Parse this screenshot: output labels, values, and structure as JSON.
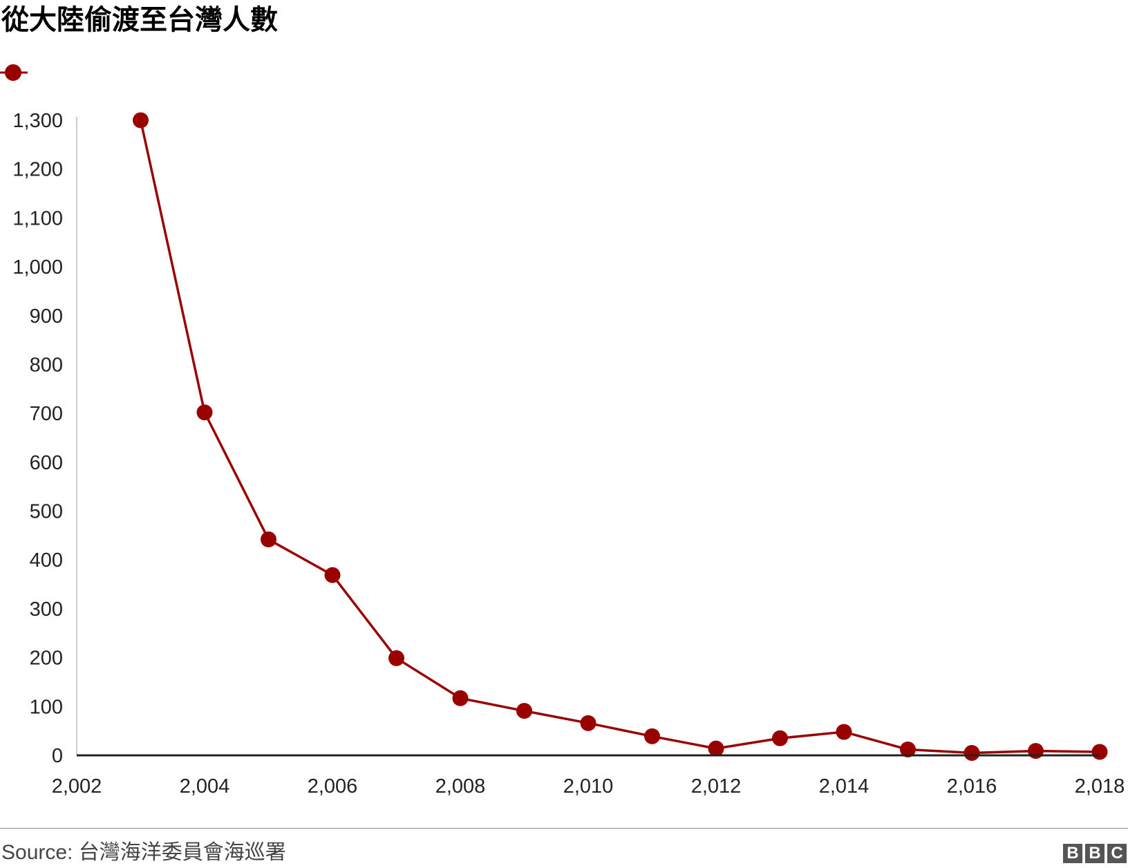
{
  "title": "從大陸偷渡至台灣人數",
  "legend": {
    "series_name": "",
    "color": "#990000"
  },
  "source": "Source: 台灣海洋委員會海巡署",
  "logo": [
    "B",
    "B",
    "C"
  ],
  "chart_data": {
    "type": "line",
    "title": "從大陸偷渡至台灣人數",
    "xlabel": "",
    "ylabel": "",
    "xlim": [
      2002,
      2018
    ],
    "ylim": [
      0,
      1300
    ],
    "x_ticks": [
      "2,002",
      "2,004",
      "2,006",
      "2,008",
      "2,010",
      "2,012",
      "2,014",
      "2,016",
      "2,018"
    ],
    "y_ticks": [
      "0",
      "100",
      "200",
      "300",
      "400",
      "500",
      "600",
      "700",
      "800",
      "900",
      "1,000",
      "1,100",
      "1,200",
      "1,300"
    ],
    "grid": false,
    "legend_position": "top-left",
    "series": [
      {
        "name": "",
        "color": "#990000",
        "x": [
          2003,
          2004,
          2005,
          2006,
          2007,
          2008,
          2009,
          2010,
          2011,
          2012,
          2013,
          2014,
          2015,
          2016,
          2017,
          2018
        ],
        "values": [
          1300,
          702,
          442,
          369,
          199,
          117,
          91,
          66,
          39,
          14,
          35,
          48,
          12,
          5,
          9,
          7
        ]
      }
    ]
  }
}
